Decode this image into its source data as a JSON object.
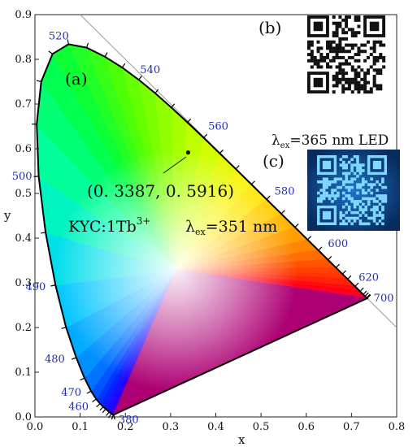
{
  "chart_data": {
    "type": "scatter",
    "subtype": "CIE 1931 chromaticity diagram",
    "xlabel": "x",
    "ylabel": "y",
    "xlim": [
      0.0,
      0.8
    ],
    "ylim": [
      0.0,
      0.9
    ],
    "x_ticks": [
      "0.0",
      "0.1",
      "0.2",
      "0.3",
      "0.4",
      "0.5",
      "0.6",
      "0.7",
      "0.8"
    ],
    "y_ticks": [
      "0.0",
      "0.1",
      "0.2",
      "0.3",
      "0.4",
      "0.5",
      "0.6",
      "0.7",
      "0.8",
      "0.9"
    ],
    "grid": false,
    "spectral_locus_labels": [
      {
        "nm": "380",
        "x": 0.1741,
        "y": 0.005
      },
      {
        "nm": "460",
        "x": 0.144,
        "y": 0.0297
      },
      {
        "nm": "470",
        "x": 0.1241,
        "y": 0.0578
      },
      {
        "nm": "480",
        "x": 0.0913,
        "y": 0.1327
      },
      {
        "nm": "490",
        "x": 0.0454,
        "y": 0.295
      },
      {
        "nm": "500",
        "x": 0.0082,
        "y": 0.5384
      },
      {
        "nm": "520",
        "x": 0.0743,
        "y": 0.8338
      },
      {
        "nm": "540",
        "x": 0.2296,
        "y": 0.7543
      },
      {
        "nm": "560",
        "x": 0.3731,
        "y": 0.6245
      },
      {
        "nm": "580",
        "x": 0.5125,
        "y": 0.4866
      },
      {
        "nm": "600",
        "x": 0.627,
        "y": 0.3725
      },
      {
        "nm": "620",
        "x": 0.6915,
        "y": 0.3083
      },
      {
        "nm": "700",
        "x": 0.7347,
        "y": 0.2653
      }
    ],
    "points": [
      {
        "label": "KYC:1Tb3+",
        "x": 0.3387,
        "y": 0.5916
      }
    ],
    "annotations": {
      "coord_text": "(0. 3387, 0. 5916)",
      "sample_prefix": "KYC:1Tb",
      "sample_sup": "3+",
      "lambda_excitation_a": "=351 nm",
      "lambda_excitation_c": "=365 nm LED",
      "lambda_symbol": "λ",
      "lambda_sub": "ex"
    },
    "panels": [
      "(a)",
      "(b)",
      "(c)"
    ]
  },
  "colors": {
    "wavelength_labels": "#1f2fb0",
    "panel_c_background": "#0a2f66",
    "qr_glow": "#7fd8ff"
  }
}
